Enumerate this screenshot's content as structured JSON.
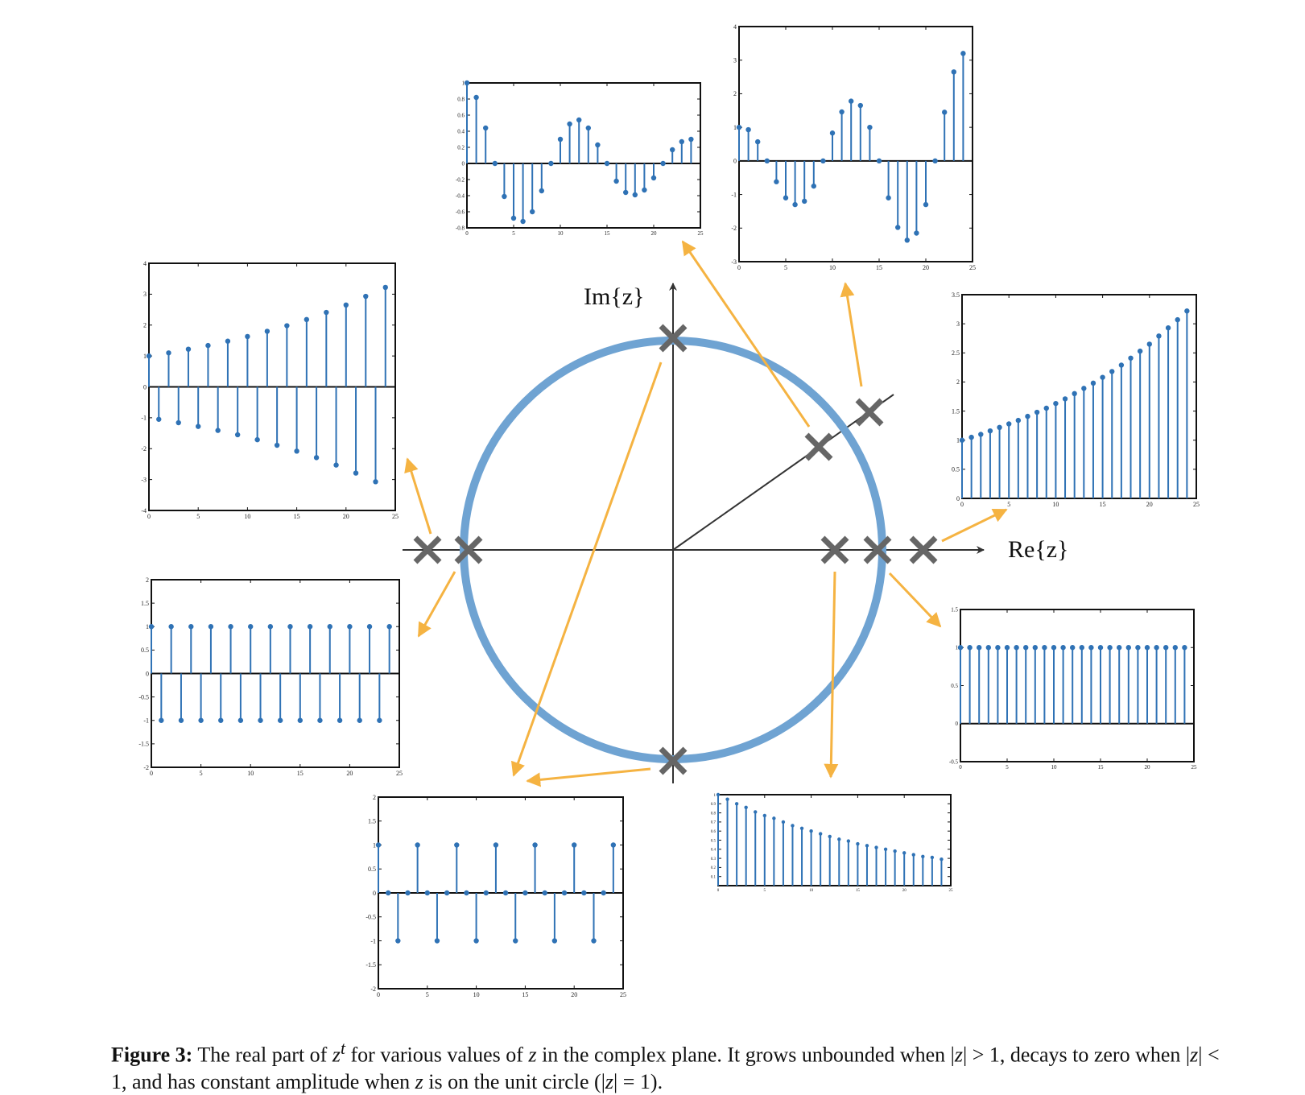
{
  "figure": {
    "number_label": "Figure 3:",
    "caption_parts": [
      "The real part of ",
      "z",
      "t",
      " for various values of ",
      "z",
      " in the complex plane. It grows unbounded when |",
      "z",
      "| > 1, decays to zero when |",
      "z",
      "| < 1, and has constant amplitude when ",
      "z",
      " is on the unit circle (|",
      "z",
      "| = 1)."
    ],
    "re_label": "Re{z}",
    "im_label": "Im{z}"
  },
  "colors": {
    "circle": "#6fa3d2",
    "arrow": "#f5b342",
    "stem": "#2f72b5",
    "cross": "#666666",
    "axis": "#333333"
  },
  "chart_data": [
    {
      "type": "stem",
      "title": "",
      "xlabel": "",
      "ylabel": "",
      "xlim": [
        0,
        25
      ],
      "ylim": [
        -0.8,
        1
      ],
      "x_ticks": [
        0,
        5,
        10,
        15,
        20,
        25
      ],
      "y_ticks": [
        -0.8,
        -0.6,
        -0.4,
        -0.2,
        0,
        0.2,
        0.4,
        0.6,
        0.8,
        1
      ],
      "x": [
        0,
        1,
        2,
        3,
        4,
        5,
        6,
        7,
        8,
        9,
        10,
        11,
        12,
        13,
        14,
        15,
        16,
        17,
        18,
        19,
        20,
        21,
        22,
        23,
        24
      ],
      "y": [
        1,
        0.82,
        0.44,
        0,
        -0.41,
        -0.68,
        -0.72,
        -0.6,
        -0.34,
        0,
        0.3,
        0.49,
        0.54,
        0.44,
        0.23,
        0,
        -0.22,
        -0.36,
        -0.39,
        -0.33,
        -0.18,
        0,
        0.17,
        0.27,
        0.3
      ]
    },
    {
      "type": "stem",
      "title": "",
      "xlabel": "",
      "ylabel": "",
      "xlim": [
        0,
        25
      ],
      "ylim": [
        -3,
        4
      ],
      "x_ticks": [
        0,
        5,
        10,
        15,
        20,
        25
      ],
      "y_ticks": [
        -3,
        -2,
        -1,
        0,
        1,
        2,
        3,
        4
      ],
      "x": [
        0,
        1,
        2,
        3,
        4,
        5,
        6,
        7,
        8,
        9,
        10,
        11,
        12,
        13,
        14,
        15,
        16,
        17,
        18,
        19,
        20,
        21,
        22,
        23,
        24
      ],
      "y": [
        1,
        0.93,
        0.57,
        0,
        -0.62,
        -1.1,
        -1.3,
        -1.2,
        -0.75,
        0,
        0.83,
        1.46,
        1.78,
        1.65,
        1,
        0,
        -1.1,
        -1.98,
        -2.36,
        -2.15,
        -1.3,
        0,
        1.45,
        2.65,
        3.2
      ]
    },
    {
      "type": "stem",
      "title": "",
      "xlabel": "",
      "ylabel": "",
      "xlim": [
        0,
        25
      ],
      "ylim": [
        -4,
        4
      ],
      "x_ticks": [
        0,
        5,
        10,
        15,
        20,
        25
      ],
      "y_ticks": [
        -4,
        -3,
        -2,
        -1,
        0,
        1,
        2,
        3,
        4
      ],
      "x": [
        0,
        1,
        2,
        3,
        4,
        5,
        6,
        7,
        8,
        9,
        10,
        11,
        12,
        13,
        14,
        15,
        16,
        17,
        18,
        19,
        20,
        21,
        22,
        23,
        24
      ],
      "y": [
        1,
        -1.05,
        1.1,
        -1.16,
        1.22,
        -1.28,
        1.34,
        -1.41,
        1.48,
        -1.55,
        1.63,
        -1.71,
        1.8,
        -1.89,
        1.98,
        -2.08,
        2.18,
        -2.29,
        2.41,
        -2.53,
        2.65,
        -2.79,
        2.93,
        -3.07,
        3.22
      ]
    },
    {
      "type": "stem",
      "title": "",
      "xlabel": "",
      "ylabel": "",
      "xlim": [
        0,
        25
      ],
      "ylim": [
        0,
        3.5
      ],
      "x_ticks": [
        0,
        5,
        10,
        15,
        20,
        25
      ],
      "y_ticks": [
        0,
        0.5,
        1,
        1.5,
        2,
        2.5,
        3,
        3.5
      ],
      "x": [
        0,
        1,
        2,
        3,
        4,
        5,
        6,
        7,
        8,
        9,
        10,
        11,
        12,
        13,
        14,
        15,
        16,
        17,
        18,
        19,
        20,
        21,
        22,
        23,
        24
      ],
      "y": [
        1,
        1.05,
        1.1,
        1.16,
        1.22,
        1.28,
        1.34,
        1.41,
        1.48,
        1.55,
        1.63,
        1.71,
        1.8,
        1.89,
        1.98,
        2.08,
        2.18,
        2.29,
        2.41,
        2.53,
        2.65,
        2.79,
        2.93,
        3.07,
        3.22
      ]
    },
    {
      "type": "stem",
      "title": "",
      "xlabel": "",
      "ylabel": "",
      "xlim": [
        0,
        25
      ],
      "ylim": [
        -2,
        2
      ],
      "x_ticks": [
        0,
        5,
        10,
        15,
        20,
        25
      ],
      "y_ticks": [
        -2,
        -1.5,
        -1,
        -0.5,
        0,
        0.5,
        1,
        1.5,
        2
      ],
      "x": [
        0,
        1,
        2,
        3,
        4,
        5,
        6,
        7,
        8,
        9,
        10,
        11,
        12,
        13,
        14,
        15,
        16,
        17,
        18,
        19,
        20,
        21,
        22,
        23,
        24
      ],
      "y": [
        1,
        -1,
        1,
        -1,
        1,
        -1,
        1,
        -1,
        1,
        -1,
        1,
        -1,
        1,
        -1,
        1,
        -1,
        1,
        -1,
        1,
        -1,
        1,
        -1,
        1,
        -1,
        1
      ]
    },
    {
      "type": "stem",
      "title": "",
      "xlabel": "",
      "ylabel": "",
      "xlim": [
        0,
        25
      ],
      "ylim": [
        -0.5,
        1.5
      ],
      "x_ticks": [
        0,
        5,
        10,
        15,
        20,
        25
      ],
      "y_ticks": [
        -0.5,
        0,
        0.5,
        1,
        1.5
      ],
      "x": [
        0,
        1,
        2,
        3,
        4,
        5,
        6,
        7,
        8,
        9,
        10,
        11,
        12,
        13,
        14,
        15,
        16,
        17,
        18,
        19,
        20,
        21,
        22,
        23,
        24
      ],
      "y": [
        1,
        1,
        1,
        1,
        1,
        1,
        1,
        1,
        1,
        1,
        1,
        1,
        1,
        1,
        1,
        1,
        1,
        1,
        1,
        1,
        1,
        1,
        1,
        1,
        1
      ]
    },
    {
      "type": "stem",
      "title": "",
      "xlabel": "",
      "ylabel": "",
      "xlim": [
        0,
        25
      ],
      "ylim": [
        -2,
        2
      ],
      "x_ticks": [
        0,
        5,
        10,
        15,
        20,
        25
      ],
      "y_ticks": [
        -2,
        -1.5,
        -1,
        -0.5,
        0,
        0.5,
        1,
        1.5,
        2
      ],
      "x": [
        0,
        1,
        2,
        3,
        4,
        5,
        6,
        7,
        8,
        9,
        10,
        11,
        12,
        13,
        14,
        15,
        16,
        17,
        18,
        19,
        20,
        21,
        22,
        23,
        24
      ],
      "y": [
        1,
        0,
        -1,
        0,
        1,
        0,
        -1,
        0,
        1,
        0,
        -1,
        0,
        1,
        0,
        -1,
        0,
        1,
        0,
        -1,
        0,
        1,
        0,
        -1,
        0,
        1
      ]
    },
    {
      "type": "stem",
      "title": "",
      "xlabel": "",
      "ylabel": "",
      "xlim": [
        0,
        25
      ],
      "ylim": [
        0,
        1
      ],
      "x_ticks": [
        0,
        5,
        10,
        15,
        20,
        25
      ],
      "y_ticks": [
        0.1,
        0.2,
        0.3,
        0.4,
        0.5,
        0.6,
        0.7,
        0.8,
        0.9,
        1
      ],
      "x": [
        0,
        1,
        2,
        3,
        4,
        5,
        6,
        7,
        8,
        9,
        10,
        11,
        12,
        13,
        14,
        15,
        16,
        17,
        18,
        19,
        20,
        21,
        22,
        23,
        24
      ],
      "y": [
        1,
        0.95,
        0.9,
        0.86,
        0.81,
        0.77,
        0.74,
        0.7,
        0.66,
        0.63,
        0.6,
        0.57,
        0.54,
        0.51,
        0.49,
        0.46,
        0.44,
        0.42,
        0.4,
        0.38,
        0.36,
        0.34,
        0.32,
        0.31,
        0.29
      ]
    }
  ]
}
